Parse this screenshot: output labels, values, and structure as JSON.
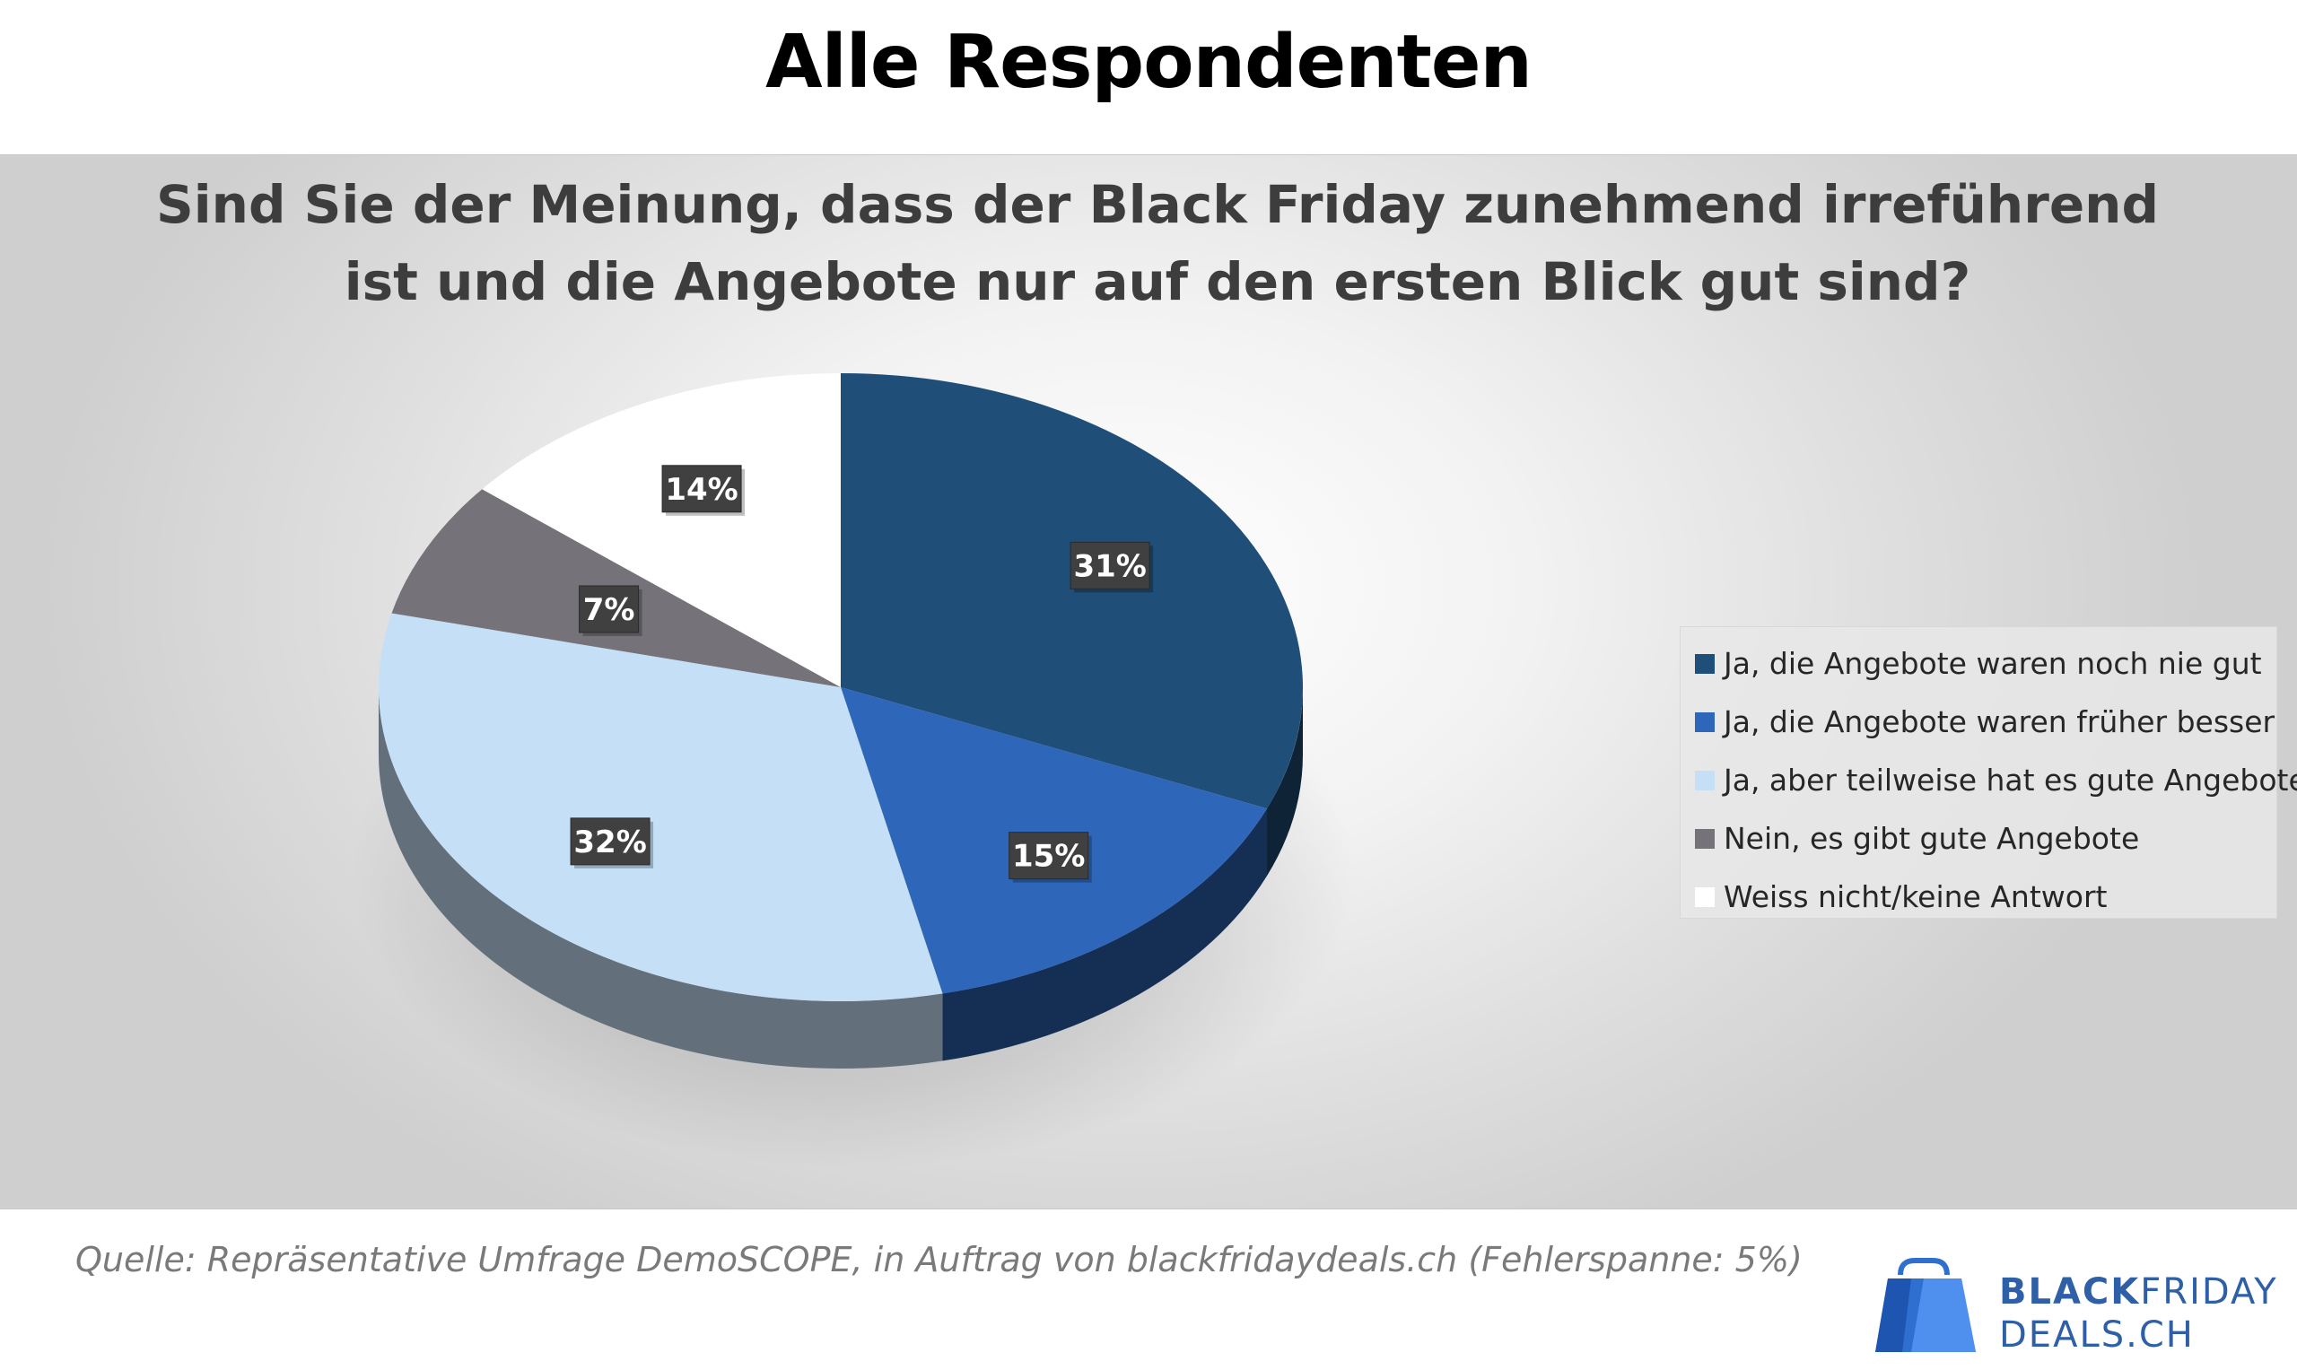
{
  "page": {
    "title": "Alle Respondenten"
  },
  "chart_data": {
    "type": "pie",
    "title_lines": [
      "Sind Sie der Meinung, dass der Black Friday zunehmend irreführend",
      "ist und die Angebote nur auf den ersten Blick gut sind?"
    ],
    "slices": [
      {
        "label": "Ja, die Angebote waren noch nie gut",
        "value": 31,
        "value_label": "31%",
        "color": "#1F4E79"
      },
      {
        "label": "Ja, die Angebote waren früher besser",
        "value": 15,
        "value_label": "15%",
        "color": "#2E67BA"
      },
      {
        "label": "Ja, aber teilweise hat es gute Angebote",
        "value": 32,
        "value_label": "32%",
        "color": "#C5E0F6"
      },
      {
        "label": "Nein, es gibt gute Angebote",
        "value": 7,
        "value_label": "7%",
        "color": "#757379"
      },
      {
        "label": "Weiss nicht/keine Antwort",
        "value": 14,
        "value_label": "14%",
        "color": "#FFFFFF"
      }
    ],
    "legend_position": "right",
    "style": "3d-pie"
  },
  "source": "Quelle: Repräsentative Umfrage DemoSCOPE, in Auftrag von blackfridaydeals.ch (Fehlerspanne: 5%)",
  "brand": {
    "line1_bold": "BLACK",
    "line1_regular": "FRIDAY",
    "line2": "DEALS.CH",
    "color": "#2F5FA6"
  }
}
